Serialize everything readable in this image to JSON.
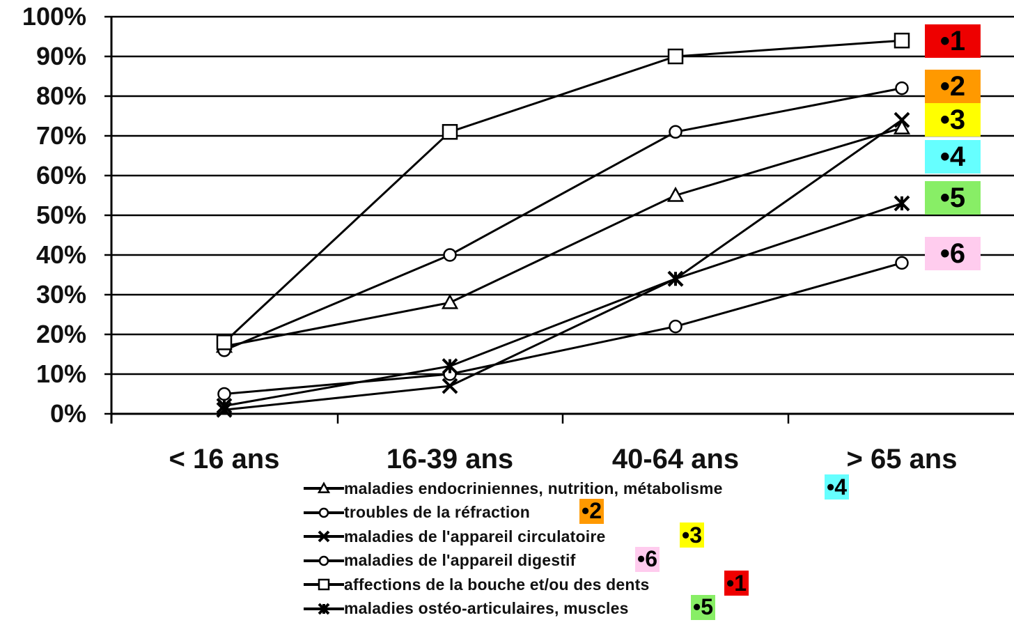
{
  "chart_data": {
    "type": "line",
    "categories": [
      "< 16 ans",
      "16-39 ans",
      "40-64 ans",
      "> 65 ans"
    ],
    "ylim": [
      0,
      100
    ],
    "yticks": [
      "0%",
      "10%",
      "20%",
      "30%",
      "40%",
      "50%",
      "60%",
      "70%",
      "80%",
      "90%",
      "100%"
    ],
    "grid": true,
    "legend_position": "bottom",
    "series": [
      {
        "name": "maladies endocriniennes, nutrition, métabolisme",
        "marker": "triangle",
        "badge": "•4",
        "badge_color": "#66ffff",
        "values": [
          17,
          28,
          55,
          72
        ]
      },
      {
        "name": "troubles de la réfraction",
        "marker": "circle",
        "badge": "•2",
        "badge_color": "#ff9900",
        "values": [
          16,
          40,
          71,
          82
        ]
      },
      {
        "name": "maladies de l'appareil circulatoire",
        "marker": "x",
        "badge": "•3",
        "badge_color": "#ffff00",
        "values": [
          1,
          7,
          34,
          74
        ]
      },
      {
        "name": "maladies de l'appareil digestif",
        "marker": "circle",
        "badge": "•6",
        "badge_color": "#ffccee",
        "values": [
          5,
          10,
          22,
          38
        ]
      },
      {
        "name": "affections de la bouche et/ou des dents",
        "marker": "square",
        "badge": "•1",
        "badge_color": "#ee0000",
        "values": [
          18,
          71,
          90,
          94
        ]
      },
      {
        "name": "maladies ostéo-articulaires, muscles",
        "marker": "star",
        "badge": "•5",
        "badge_color": "#88ee66",
        "values": [
          2,
          12,
          34,
          53
        ]
      }
    ]
  }
}
